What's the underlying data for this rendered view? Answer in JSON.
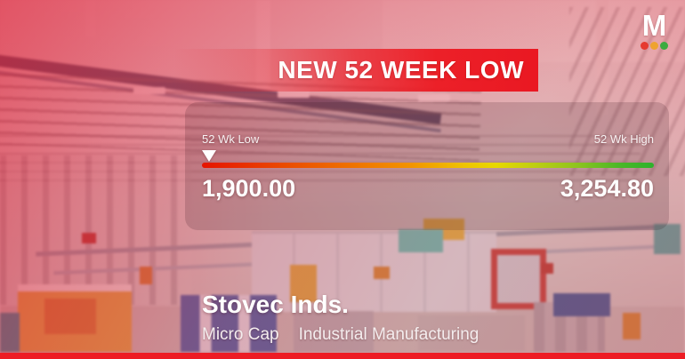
{
  "brand": {
    "logo_letter": "M",
    "dots": [
      {
        "name": "red",
        "color": "#e63a30"
      },
      {
        "name": "orange",
        "color": "#efa32f"
      },
      {
        "name": "green",
        "color": "#3cab3f"
      }
    ]
  },
  "banner": {
    "label": "NEW 52 WEEK LOW",
    "background": "#ea1822",
    "text_color": "#ffffff"
  },
  "range_gauge": {
    "low_label": "52 Wk Low",
    "high_label": "52 Wk High",
    "low_value": "1,900.00",
    "high_value": "3,254.80",
    "marker_at": "low",
    "bar_colors": [
      "#e61400",
      "#f29300",
      "#e8d800",
      "#8ec41e",
      "#2eb22c"
    ]
  },
  "stock": {
    "name": "Stovec Inds.",
    "market_cap": "Micro Cap",
    "sector": "Industrial Manufacturing"
  },
  "footer": {
    "bar_color": "#ed1c24"
  },
  "chart_data": {
    "type": "bar",
    "subtype": "52-week-range-gauge",
    "title": "NEW 52 WEEK LOW",
    "categories": [
      "52 Wk Low",
      "52 Wk High"
    ],
    "values": [
      1900.0,
      3254.8
    ],
    "value_labels": [
      "1,900.00",
      "3,254.80"
    ],
    "marker": {
      "position": "low-end",
      "value": 1900.0,
      "shape": "white downward triangle"
    },
    "axis_range": [
      1900.0,
      3254.8
    ],
    "legend": "none",
    "notes": "Horizontal gauge bar with red-to-green gradient (red = 52wk low side, green = 52wk high side); white triangle marker sits at the extreme low end indicating the stock hit a new 52-week low."
  }
}
